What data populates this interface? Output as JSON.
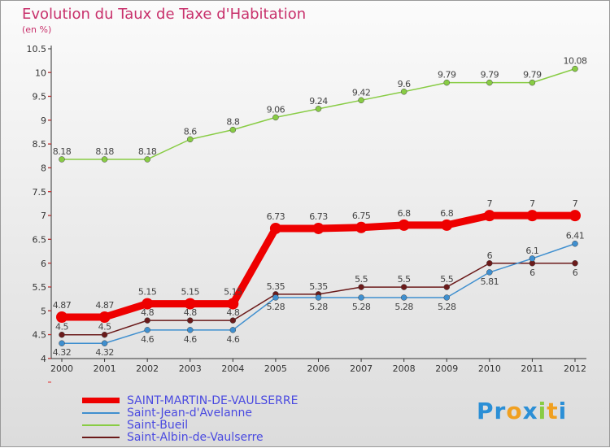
{
  "chart_data": {
    "type": "line",
    "title": "Evolution du Taux de Taxe d'Habitation",
    "subtitle": "(en %)",
    "ylim": [
      4,
      10.5
    ],
    "yticks": [
      "4",
      "4.5",
      "5",
      "5.5",
      "6",
      "6.5",
      "7",
      "7.5",
      "8",
      "8.5",
      "9",
      "9.5",
      "10",
      "10.5"
    ],
    "x": [
      "2000",
      "2001",
      "2002",
      "2003",
      "2004",
      "2005",
      "2006",
      "2007",
      "2008",
      "2009",
      "2010",
      "2011",
      "2012"
    ],
    "series": [
      {
        "name": "SAINT-MARTIN-DE-VAULSERRE",
        "color": "#ee0000",
        "values": [
          4.87,
          4.87,
          5.15,
          5.15,
          5.15,
          6.73,
          6.73,
          6.75,
          6.8,
          6.8,
          7,
          7,
          7
        ]
      },
      {
        "name": "Saint-Jean-d'Avelanne",
        "color": "#3f8fcf",
        "values": [
          4.32,
          4.32,
          4.6,
          4.6,
          4.6,
          5.28,
          5.28,
          5.28,
          5.28,
          5.28,
          5.81,
          6.1,
          6.41
        ]
      },
      {
        "name": "Saint-Bueil",
        "color": "#88cc44",
        "values": [
          8.18,
          8.18,
          8.18,
          8.6,
          8.8,
          9.06,
          9.24,
          9.42,
          9.6,
          9.79,
          9.79,
          9.79,
          10.08
        ]
      },
      {
        "name": "Saint-Albin-de-Vaulserre",
        "color": "#6b1a1a",
        "values": [
          4.5,
          4.5,
          4.8,
          4.8,
          4.8,
          5.35,
          5.35,
          5.5,
          5.5,
          5.5,
          6,
          6,
          6
        ]
      }
    ]
  },
  "logo": "Proxiti"
}
